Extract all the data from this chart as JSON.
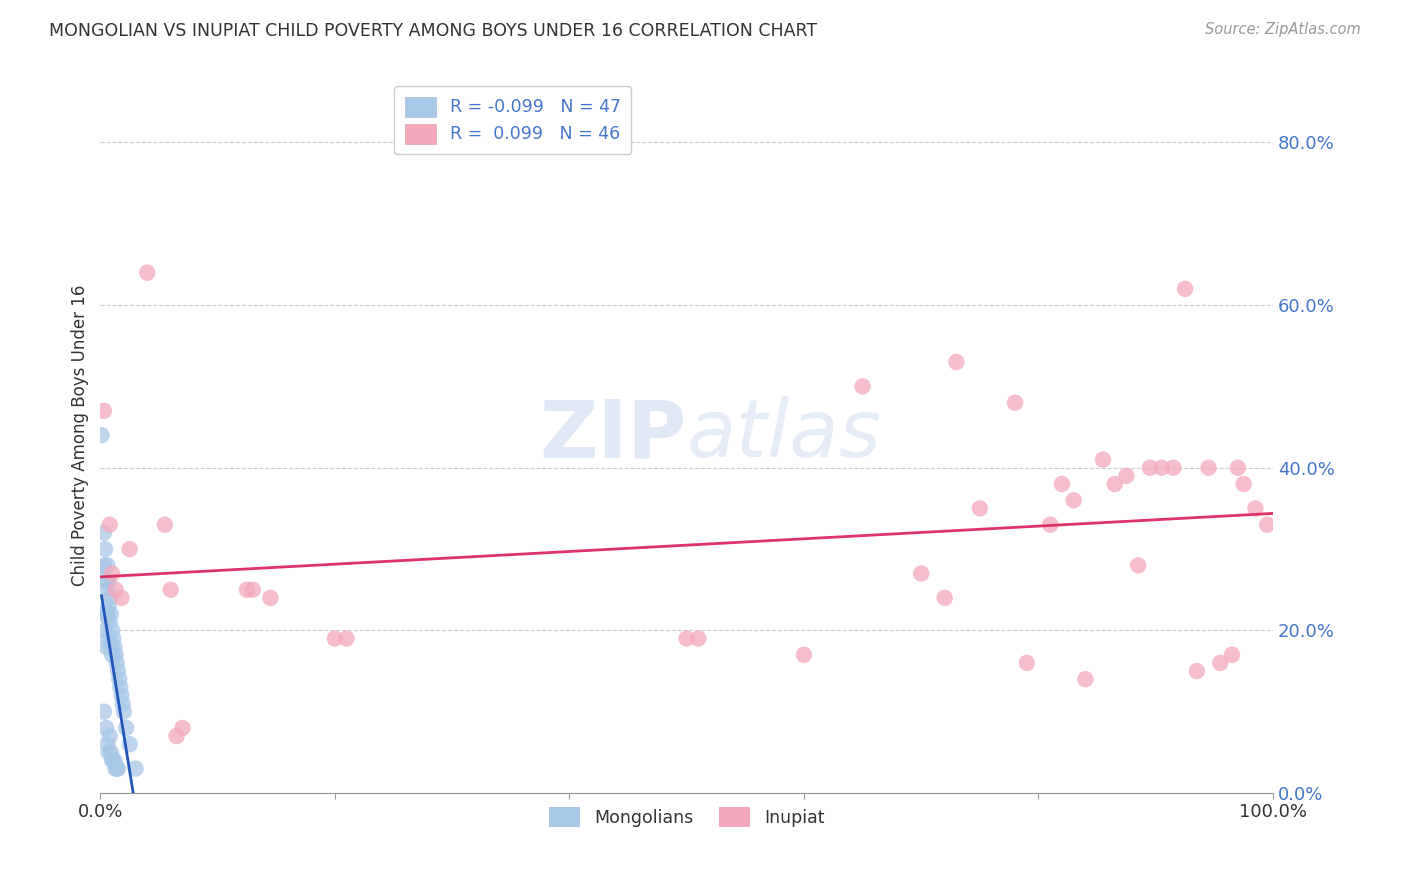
{
  "title": "MONGOLIAN VS INUPIAT CHILD POVERTY AMONG BOYS UNDER 16 CORRELATION CHART",
  "source": "Source: ZipAtlas.com",
  "ylabel": "Child Poverty Among Boys Under 16",
  "ytick_labels": [
    "0.0%",
    "20.0%",
    "40.0%",
    "60.0%",
    "80.0%"
  ],
  "ytick_values": [
    0.0,
    0.2,
    0.4,
    0.6,
    0.8
  ],
  "xlim": [
    0.0,
    1.0
  ],
  "ylim": [
    0.0,
    0.88
  ],
  "legend_1_label": "R = -0.099   N = 47",
  "legend_2_label": "R =  0.099   N = 46",
  "mongolian_color": "#a8c8e8",
  "inupiat_color": "#f4a8bc",
  "mongolian_line_color": "#2255bb",
  "inupiat_line_color": "#dd3366",
  "watermark_zip": "ZIP",
  "watermark_atlas": "atlas",
  "title_color": "#333333",
  "ytick_color": "#4477cc",
  "xtick_color": "#333333",
  "mongolian_x": [
    0.001,
    0.002,
    0.002,
    0.003,
    0.003,
    0.003,
    0.004,
    0.004,
    0.005,
    0.005,
    0.005,
    0.005,
    0.006,
    0.006,
    0.006,
    0.006,
    0.007,
    0.007,
    0.007,
    0.007,
    0.008,
    0.008,
    0.008,
    0.009,
    0.009,
    0.009,
    0.01,
    0.01,
    0.01,
    0.011,
    0.011,
    0.012,
    0.012,
    0.013,
    0.013,
    0.014,
    0.014,
    0.015,
    0.015,
    0.016,
    0.017,
    0.018,
    0.019,
    0.02,
    0.022,
    0.025,
    0.03
  ],
  "mongolian_y": [
    0.44,
    0.27,
    0.22,
    0.32,
    0.28,
    0.1,
    0.3,
    0.2,
    0.26,
    0.22,
    0.18,
    0.08,
    0.28,
    0.25,
    0.22,
    0.06,
    0.26,
    0.23,
    0.19,
    0.05,
    0.24,
    0.21,
    0.07,
    0.22,
    0.18,
    0.05,
    0.2,
    0.17,
    0.04,
    0.19,
    0.04,
    0.18,
    0.04,
    0.17,
    0.03,
    0.16,
    0.03,
    0.15,
    0.03,
    0.14,
    0.13,
    0.12,
    0.11,
    0.1,
    0.08,
    0.06,
    0.03
  ],
  "inupiat_x": [
    0.003,
    0.008,
    0.01,
    0.013,
    0.018,
    0.025,
    0.04,
    0.055,
    0.06,
    0.065,
    0.07,
    0.125,
    0.13,
    0.145,
    0.2,
    0.21,
    0.5,
    0.51,
    0.6,
    0.65,
    0.7,
    0.72,
    0.73,
    0.75,
    0.78,
    0.79,
    0.81,
    0.82,
    0.83,
    0.84,
    0.855,
    0.865,
    0.875,
    0.885,
    0.895,
    0.905,
    0.915,
    0.925,
    0.935,
    0.945,
    0.955,
    0.965,
    0.97,
    0.975,
    0.985,
    0.995
  ],
  "inupiat_y": [
    0.47,
    0.33,
    0.27,
    0.25,
    0.24,
    0.3,
    0.64,
    0.33,
    0.25,
    0.07,
    0.08,
    0.25,
    0.25,
    0.24,
    0.19,
    0.19,
    0.19,
    0.19,
    0.17,
    0.5,
    0.27,
    0.24,
    0.53,
    0.35,
    0.48,
    0.16,
    0.33,
    0.38,
    0.36,
    0.14,
    0.41,
    0.38,
    0.39,
    0.28,
    0.4,
    0.4,
    0.4,
    0.62,
    0.15,
    0.4,
    0.16,
    0.17,
    0.4,
    0.38,
    0.35,
    0.33
  ]
}
